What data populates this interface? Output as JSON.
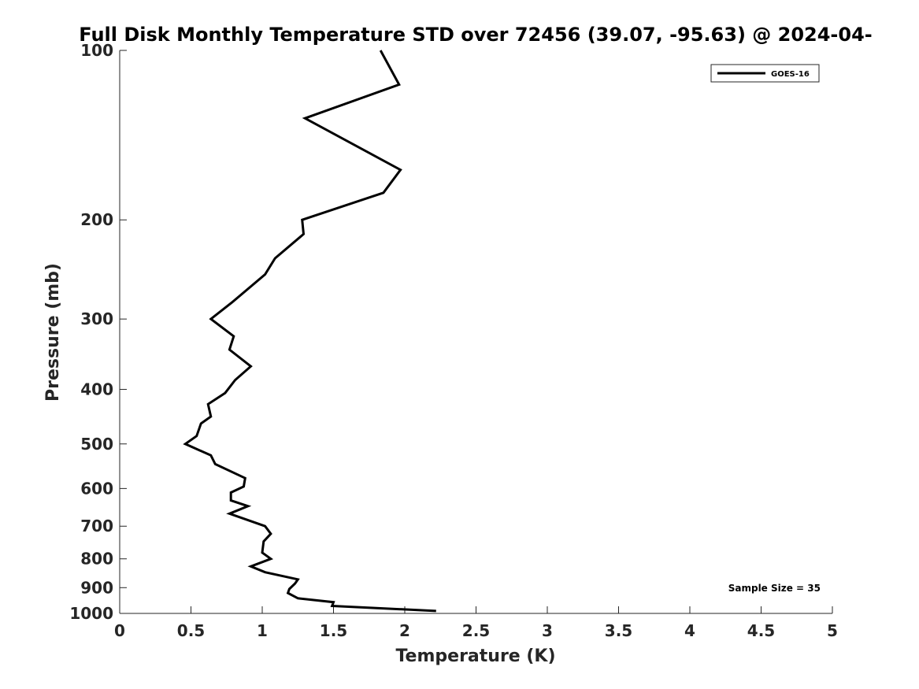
{
  "chart_data": {
    "type": "line",
    "title": "Full Disk Monthly Temperature STD over 72456 (39.07, -95.63) @ 2024-04-",
    "xlabel": "Temperature (K)",
    "ylabel": "Pressure (mb)",
    "xlim": [
      0,
      5
    ],
    "ylim": [
      100,
      1000
    ],
    "y_scale": "log",
    "y_reversed": true,
    "x_ticks": [
      0,
      0.5,
      1,
      1.5,
      2,
      2.5,
      3,
      3.5,
      4,
      4.5,
      5
    ],
    "x_tick_labels": [
      "0",
      "0.5",
      "1",
      "1.5",
      "2",
      "2.5",
      "3",
      "3.5",
      "4",
      "4.5",
      "5"
    ],
    "y_ticks": [
      100,
      200,
      300,
      400,
      500,
      600,
      700,
      800,
      900,
      1000
    ],
    "y_tick_labels": [
      "100",
      "200",
      "300",
      "400",
      "500",
      "600",
      "700",
      "800",
      "900",
      "1000"
    ],
    "grid": false,
    "legend_position": "top-right",
    "annotation": "Sample Size = 35",
    "series": [
      {
        "name": "GOES-16",
        "color": "#000000",
        "x": [
          1.83,
          1.96,
          1.3,
          1.97,
          1.85,
          1.28,
          1.29,
          1.09,
          1.02,
          0.79,
          0.64,
          0.8,
          0.77,
          0.92,
          0.81,
          0.74,
          0.62,
          0.64,
          0.57,
          0.54,
          0.46,
          0.64,
          0.67,
          0.88,
          0.87,
          0.78,
          0.78,
          0.9,
          0.77,
          1.02,
          1.06,
          1.01,
          1.0,
          1.06,
          0.92,
          1.02,
          1.25,
          1.23,
          1.19,
          1.18,
          1.25,
          1.5,
          1.49,
          2.22
        ],
        "y": [
          100,
          115,
          132,
          163,
          179,
          200,
          212,
          234,
          250,
          280,
          300,
          322,
          340,
          364,
          385,
          406,
          425,
          447,
          460,
          484,
          500,
          524,
          543,
          575,
          595,
          610,
          630,
          645,
          665,
          700,
          722,
          745,
          780,
          800,
          825,
          845,
          870,
          885,
          905,
          920,
          940,
          955,
          970,
          990
        ]
      }
    ]
  }
}
